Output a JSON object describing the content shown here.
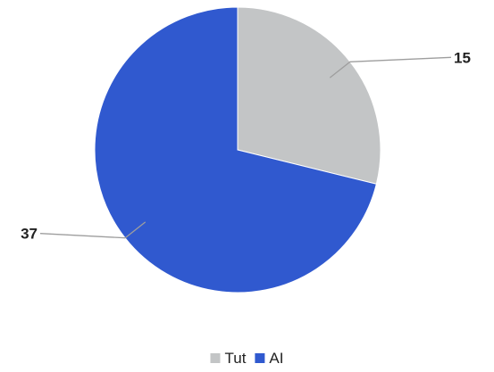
{
  "chart_data": {
    "type": "pie",
    "start_angle_deg": 0,
    "direction": "clockwise",
    "slices": [
      {
        "label": "Tut",
        "value": 15,
        "color": "#c3c5c6"
      },
      {
        "label": "AI",
        "value": 37,
        "color": "#3059cf"
      }
    ],
    "data_labels": [
      "15",
      "37"
    ],
    "legend": {
      "placement": "bottom",
      "entries": [
        "Tut",
        "AI"
      ]
    }
  }
}
